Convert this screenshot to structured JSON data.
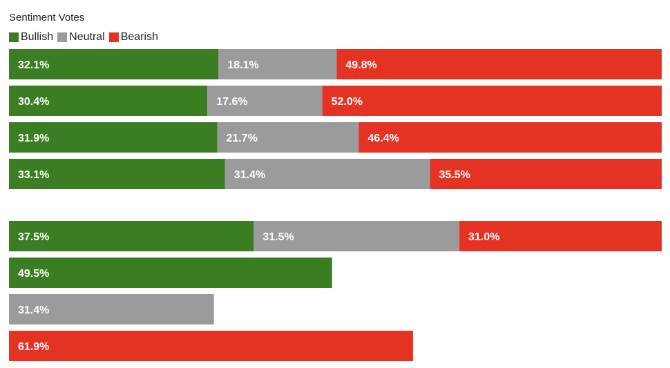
{
  "chart_data": {
    "type": "bar",
    "orientation": "horizontal",
    "stacked": true,
    "title": "Sentiment Votes",
    "legend": [
      "Bullish",
      "Neutral",
      "Bearish"
    ],
    "legend_position": "top-left",
    "colors": {
      "Bullish": "#3a7d22",
      "Neutral": "#9b9b9b",
      "Bearish": "#e53323"
    },
    "value_scale_max": 100,
    "rows": [
      {
        "segments": [
          {
            "series": "Bullish",
            "value": 32.1,
            "label": "32.1%"
          },
          {
            "series": "Neutral",
            "value": 18.1,
            "label": "18.1%"
          },
          {
            "series": "Bearish",
            "value": 49.8,
            "label": "49.8%"
          }
        ]
      },
      {
        "segments": [
          {
            "series": "Bullish",
            "value": 30.4,
            "label": "30.4%"
          },
          {
            "series": "Neutral",
            "value": 17.6,
            "label": "17.6%"
          },
          {
            "series": "Bearish",
            "value": 52.0,
            "label": "52.0%"
          }
        ]
      },
      {
        "segments": [
          {
            "series": "Bullish",
            "value": 31.9,
            "label": "31.9%"
          },
          {
            "series": "Neutral",
            "value": 21.7,
            "label": "21.7%"
          },
          {
            "series": "Bearish",
            "value": 46.4,
            "label": "46.4%"
          }
        ]
      },
      {
        "segments": [
          {
            "series": "Bullish",
            "value": 33.1,
            "label": "33.1%"
          },
          {
            "series": "Neutral",
            "value": 31.4,
            "label": "31.4%"
          },
          {
            "series": "Bearish",
            "value": 35.5,
            "label": "35.5%"
          }
        ]
      },
      {
        "segments": [
          {
            "series": "Bullish",
            "value": 37.5,
            "label": "37.5%"
          },
          {
            "series": "Neutral",
            "value": 31.5,
            "label": "31.5%"
          },
          {
            "series": "Bearish",
            "value": 31.0,
            "label": "31.0%"
          }
        ]
      },
      {
        "segments": [
          {
            "series": "Bullish",
            "value": 49.5,
            "label": "49.5%"
          }
        ]
      },
      {
        "segments": [
          {
            "series": "Neutral",
            "value": 31.4,
            "label": "31.4%"
          }
        ]
      },
      {
        "segments": [
          {
            "series": "Bearish",
            "value": 61.9,
            "label": "61.9%"
          }
        ]
      }
    ]
  }
}
